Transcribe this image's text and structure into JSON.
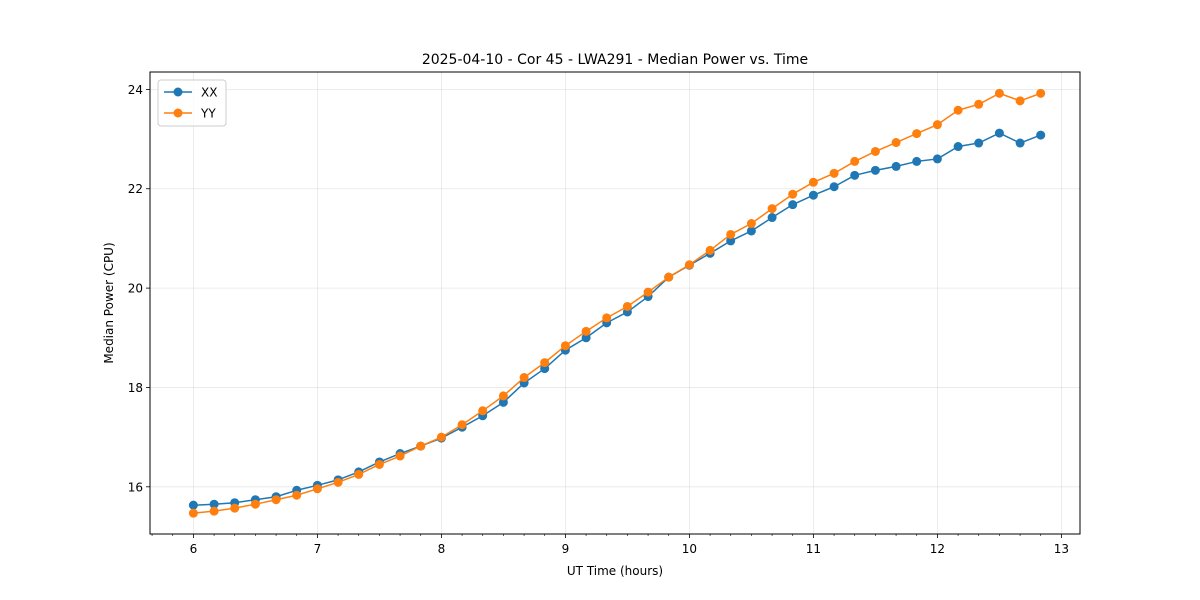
{
  "chart_data": {
    "type": "line",
    "title": "2025-04-10 - Cor 45 - LWA291 - Median Power vs. Time",
    "xlabel": "UT Time (hours)",
    "ylabel": "Median Power (CPU)",
    "xlim": [
      5.65,
      13.15
    ],
    "ylim": [
      15.05,
      24.35
    ],
    "xticks": [
      6,
      7,
      8,
      9,
      10,
      11,
      12,
      13
    ],
    "yticks": [
      16,
      18,
      20,
      22,
      24
    ],
    "grid": true,
    "legend_position": "top-left",
    "x": [
      6.0,
      6.167,
      6.333,
      6.5,
      6.667,
      6.833,
      7.0,
      7.167,
      7.333,
      7.5,
      7.667,
      7.833,
      8.0,
      8.167,
      8.333,
      8.5,
      8.667,
      8.833,
      9.0,
      9.167,
      9.333,
      9.5,
      9.667,
      9.833,
      10.0,
      10.167,
      10.333,
      10.5,
      10.667,
      10.833,
      11.0,
      11.167,
      11.333,
      11.5,
      11.667,
      11.833,
      12.0,
      12.167,
      12.333,
      12.5,
      12.667,
      12.833
    ],
    "series": [
      {
        "name": "XX",
        "color": "#1f77b4",
        "values": [
          15.63,
          15.65,
          15.68,
          15.74,
          15.8,
          15.93,
          16.03,
          16.14,
          16.3,
          16.5,
          16.67,
          16.82,
          16.98,
          17.2,
          17.43,
          17.7,
          18.09,
          18.38,
          18.75,
          19.0,
          19.3,
          19.52,
          19.83,
          20.22,
          20.46,
          20.7,
          20.95,
          21.15,
          21.42,
          21.68,
          21.87,
          22.04,
          22.27,
          22.37,
          22.45,
          22.55,
          22.6,
          22.85,
          22.92,
          23.12,
          22.92,
          23.08
        ]
      },
      {
        "name": "YY",
        "color": "#ff7f0e",
        "values": [
          15.47,
          15.51,
          15.57,
          15.65,
          15.74,
          15.83,
          15.96,
          16.09,
          16.25,
          16.45,
          16.62,
          16.82,
          17.0,
          17.25,
          17.53,
          17.83,
          18.2,
          18.5,
          18.84,
          19.13,
          19.4,
          19.63,
          19.92,
          20.22,
          20.47,
          20.76,
          21.08,
          21.3,
          21.6,
          21.89,
          22.13,
          22.31,
          22.55,
          22.75,
          22.93,
          23.11,
          23.29,
          23.58,
          23.7,
          23.92,
          23.77,
          23.92
        ]
      }
    ]
  }
}
